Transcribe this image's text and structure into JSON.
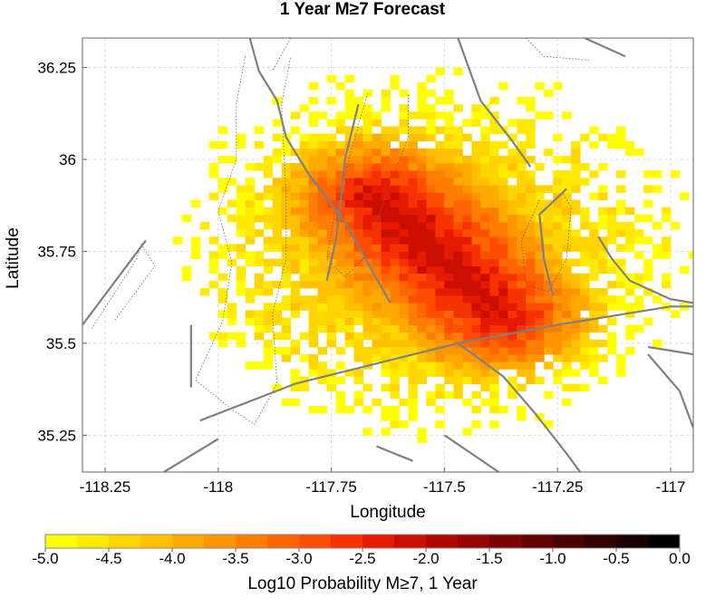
{
  "chart_data": [
    {
      "type": "heatmap",
      "title": "1 Year M≥7 Forecast",
      "xlabel": "Longitude",
      "ylabel": "Latitude",
      "xlim": [
        -118.3,
        -116.95
      ],
      "ylim": [
        35.15,
        36.33
      ],
      "x_ticks": [
        -118.25,
        -118,
        -117.75,
        -117.5,
        -117.25,
        -117
      ],
      "x_tick_labels": [
        "-118.25",
        "-118",
        "-117.75",
        "-117.5",
        "-117.25",
        "-117"
      ],
      "y_ticks": [
        35.25,
        35.5,
        35.75,
        36,
        36.25
      ],
      "y_tick_labels": [
        "35.25",
        "35.5",
        "35.75",
        "36",
        "36.25"
      ],
      "grid": true,
      "cell_size_deg": 0.02,
      "description_values": "log10 probability per cell, densest along a NW-SE trend from about (-117.65, 35.90) to (-117.37, 35.57)",
      "peak_log10_probability": -2.1,
      "background_log10_probability": -5.0,
      "faults": [
        {
          "name": "",
          "coords": [
            [
              -118.3,
              35.55
            ],
            [
              -118.16,
              35.78
            ]
          ]
        },
        {
          "name": "",
          "coords": [
            [
              -118.04,
              35.29
            ],
            [
              -117.83,
              35.39
            ],
            [
              -117.47,
              35.5
            ],
            [
              -117.25,
              35.55
            ],
            [
              -117.0,
              35.6
            ],
            [
              -116.95,
              35.6
            ]
          ]
        },
        {
          "name": "",
          "coords": [
            [
              -117.93,
              36.33
            ],
            [
              -117.91,
              36.24
            ],
            [
              -117.87,
              36.16
            ],
            [
              -117.85,
              36.06
            ],
            [
              -117.8,
              35.96
            ],
            [
              -117.72,
              35.83
            ],
            [
              -117.62,
              35.61
            ]
          ]
        },
        {
          "name": "",
          "coords": [
            [
              -117.69,
              36.15
            ],
            [
              -117.72,
              36.0
            ],
            [
              -117.73,
              35.88
            ],
            [
              -117.74,
              35.78
            ],
            [
              -117.76,
              35.67
            ]
          ]
        },
        {
          "name": "",
          "coords": [
            [
              -117.47,
              36.33
            ],
            [
              -117.42,
              36.16
            ],
            [
              -117.35,
              36.05
            ],
            [
              -117.31,
              35.98
            ]
          ]
        },
        {
          "name": "",
          "coords": [
            [
              -117.19,
              36.33
            ],
            [
              -117.1,
              36.28
            ]
          ]
        },
        {
          "name": "",
          "coords": [
            [
              -117.23,
              35.92
            ],
            [
              -117.29,
              35.85
            ],
            [
              -117.28,
              35.73
            ],
            [
              -117.26,
              35.63
            ]
          ]
        },
        {
          "name": "",
          "coords": [
            [
              -117.16,
              35.79
            ],
            [
              -117.13,
              35.73
            ],
            [
              -117.09,
              35.67
            ],
            [
              -117.0,
              35.62
            ],
            [
              -116.95,
              35.61
            ]
          ]
        },
        {
          "name": "",
          "coords": [
            [
              -117.47,
              35.5
            ],
            [
              -117.37,
              35.41
            ],
            [
              -117.3,
              35.31
            ],
            [
              -117.23,
              35.2
            ],
            [
              -117.2,
              35.15
            ]
          ]
        },
        {
          "name": "",
          "coords": [
            [
              -117.5,
              35.25
            ],
            [
              -117.38,
              35.15
            ]
          ]
        },
        {
          "name": "",
          "coords": [
            [
              -117.05,
              35.47
            ],
            [
              -116.98,
              35.37
            ],
            [
              -116.95,
              35.27
            ]
          ]
        },
        {
          "name": "",
          "coords": [
            [
              -118.0,
              35.24
            ],
            [
              -118.12,
              35.15
            ]
          ]
        },
        {
          "name": "",
          "coords": [
            [
              -117.65,
              35.22
            ],
            [
              -117.57,
              35.18
            ]
          ]
        },
        {
          "name": "",
          "coords": [
            [
              -117.05,
              35.49
            ],
            [
              -116.95,
              35.47
            ]
          ]
        },
        {
          "name": "",
          "coords": [
            [
              -118.06,
              35.55
            ],
            [
              -118.06,
              35.38
            ]
          ]
        }
      ],
      "fault_zones_dotted": [
        {
          "coords": [
            [
              -117.94,
              36.28
            ],
            [
              -117.96,
              36.15
            ],
            [
              -117.96,
              36.0
            ],
            [
              -118.0,
              35.86
            ],
            [
              -117.97,
              35.72
            ],
            [
              -117.99,
              35.56
            ],
            [
              -118.05,
              35.4
            ],
            [
              -117.97,
              35.32
            ],
            [
              -117.92,
              35.28
            ],
            [
              -117.87,
              35.39
            ],
            [
              -117.88,
              35.58
            ],
            [
              -117.85,
              35.73
            ],
            [
              -117.85,
              35.9
            ],
            [
              -117.86,
              36.15
            ],
            [
              -117.84,
              36.28
            ]
          ]
        },
        {
          "coords": [
            [
              -117.67,
              36.18
            ],
            [
              -117.7,
              36.05
            ],
            [
              -117.74,
              35.87
            ],
            [
              -117.76,
              35.73
            ],
            [
              -117.72,
              35.68
            ],
            [
              -117.68,
              35.73
            ],
            [
              -117.63,
              35.9
            ],
            [
              -117.58,
              36.06
            ],
            [
              -117.58,
              36.18
            ]
          ]
        },
        {
          "coords": [
            [
              -117.29,
              35.89
            ],
            [
              -117.33,
              35.78
            ],
            [
              -117.32,
              35.66
            ],
            [
              -117.27,
              35.64
            ],
            [
              -117.23,
              35.73
            ],
            [
              -117.22,
              35.87
            ],
            [
              -117.24,
              35.91
            ]
          ]
        },
        {
          "coords": [
            [
              -118.28,
              35.54
            ],
            [
              -118.18,
              35.73
            ],
            [
              -118.17,
              35.77
            ],
            [
              -118.14,
              35.71
            ],
            [
              -118.23,
              35.56
            ]
          ]
        },
        {
          "coords": [
            [
              -117.84,
              36.33
            ],
            [
              -117.88,
              36.24
            ]
          ]
        },
        {
          "coords": [
            [
              -117.32,
              36.33
            ],
            [
              -117.28,
              36.28
            ],
            [
              -117.18,
              36.27
            ]
          ]
        }
      ]
    },
    {
      "type": "colorbar",
      "label": "Log10 Probability M≥7, 1 Year",
      "range": [
        -5.0,
        0.0
      ],
      "tick_labels": [
        "-5.0",
        "-4.5",
        "-4.0",
        "-3.5",
        "-3.0",
        "-2.5",
        "-2.0",
        "-1.5",
        "-1.0",
        "-0.5",
        "0.0"
      ],
      "colors": [
        "#ffff00",
        "#ffea00",
        "#ffd500",
        "#ffc000",
        "#ffaa00",
        "#ff9500",
        "#ff7d00",
        "#ff6500",
        "#ff4d00",
        "#f53200",
        "#e61a00",
        "#cc0e00",
        "#b00800",
        "#960400",
        "#7c0200",
        "#640100",
        "#4a0000",
        "#320000",
        "#1a0000",
        "#000000"
      ]
    }
  ]
}
